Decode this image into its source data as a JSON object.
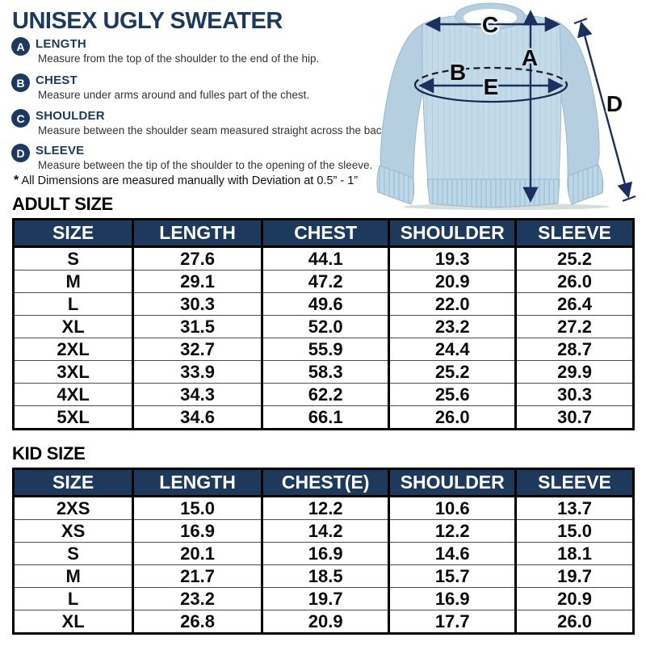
{
  "title": "UNISEX UGLY SWEATER",
  "measurements": [
    {
      "letter": "A",
      "name": "LENGTH",
      "description": "Measure from the top of the shoulder to the end of the hip."
    },
    {
      "letter": "B",
      "name": "CHEST",
      "description": "Measure under arms around and fulles part of the chest."
    },
    {
      "letter": "C",
      "name": "SHOULDER",
      "description": "Measure between the shoulder seam measured straight across the back."
    },
    {
      "letter": "D",
      "name": "SLEEVE",
      "description": "Measure between the tip of the shoulder to the opening of the sleeve."
    }
  ],
  "note": {
    "star": "*",
    "text": "All Dimensions are measured manually with Deviation at 0.5” - 1”"
  },
  "diagram": {
    "labels": {
      "a": "A",
      "b": "B",
      "c": "C",
      "d": "D",
      "e": "E"
    }
  },
  "adult_table": {
    "heading": "ADULT SIZE",
    "columns": [
      "SIZE",
      "LENGTH",
      "CHEST",
      "SHOULDER",
      "SLEEVE"
    ],
    "rows": [
      [
        "S",
        "27.6",
        "44.1",
        "19.3",
        "25.2"
      ],
      [
        "M",
        "29.1",
        "47.2",
        "20.9",
        "26.0"
      ],
      [
        "L",
        "30.3",
        "49.6",
        "22.0",
        "26.4"
      ],
      [
        "XL",
        "31.5",
        "52.0",
        "23.2",
        "27.2"
      ],
      [
        "2XL",
        "32.7",
        "55.9",
        "24.4",
        "28.7"
      ],
      [
        "3XL",
        "33.9",
        "58.3",
        "25.2",
        "29.9"
      ],
      [
        "4XL",
        "34.3",
        "62.2",
        "25.6",
        "30.3"
      ],
      [
        "5XL",
        "34.6",
        "66.1",
        "26.0",
        "30.7"
      ]
    ]
  },
  "kid_table": {
    "heading": "KID SIZE",
    "columns": [
      "SIZE",
      "LENGTH",
      "CHEST(E)",
      "SHOULDER",
      "SLEEVE"
    ],
    "rows": [
      [
        "2XS",
        "15.0",
        "12.2",
        "10.6",
        "13.7"
      ],
      [
        "XS",
        "16.9",
        "14.2",
        "12.2",
        "15.0"
      ],
      [
        "S",
        "20.1",
        "16.9",
        "14.6",
        "18.1"
      ],
      [
        "M",
        "21.7",
        "18.5",
        "15.7",
        "19.7"
      ],
      [
        "L",
        "23.2",
        "19.7",
        "16.9",
        "20.9"
      ],
      [
        "XL",
        "26.8",
        "20.9",
        "17.7",
        "26.0"
      ]
    ]
  },
  "colors": {
    "navy": "#1c3a5e",
    "table_header_bg": "#1d395c",
    "arrow_navy": "#1c2f5e",
    "sweater_body_blue": "#c3dbe9",
    "sweater_sleeve_blue": "#b5cfe0",
    "sweater_band_blue": "#bdd7e7"
  }
}
